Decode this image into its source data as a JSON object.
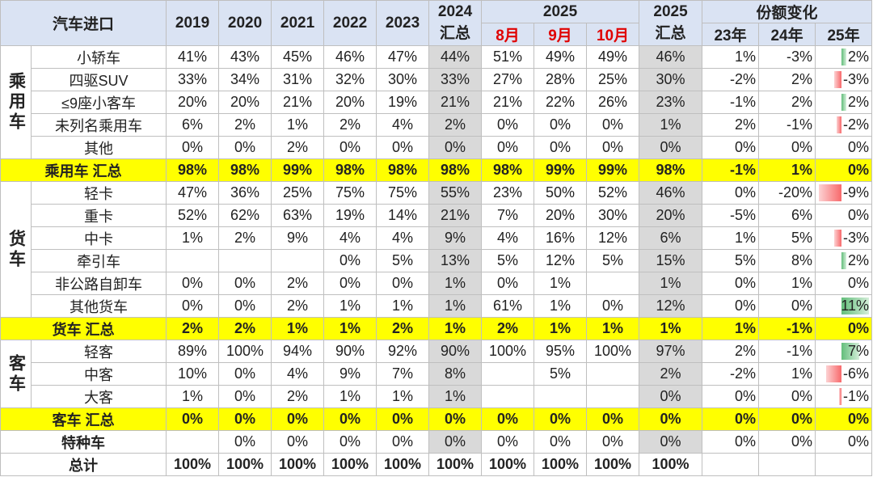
{
  "header": {
    "title": "汽车进口",
    "years": [
      "2019",
      "2020",
      "2021",
      "2022",
      "2023"
    ],
    "col2024": [
      "2024",
      "汇总"
    ],
    "group2025": "2025",
    "months": [
      "8月",
      "9月",
      "10月"
    ],
    "col2025": [
      "2025",
      "汇总"
    ],
    "change_title": "份额变化",
    "change_cols": [
      "23年",
      "24年",
      "25年"
    ]
  },
  "groups": [
    {
      "label": "乘用车",
      "rows": [
        {
          "name": "小轿车",
          "cells": [
            "41%",
            "43%",
            "45%",
            "46%",
            "47%",
            "44%",
            "51%",
            "49%",
            "49%",
            "46%",
            "1%",
            "-3%",
            "2%"
          ]
        },
        {
          "name": "四驱SUV",
          "cells": [
            "33%",
            "34%",
            "31%",
            "32%",
            "30%",
            "33%",
            "27%",
            "28%",
            "25%",
            "30%",
            "-2%",
            "2%",
            "-3%"
          ]
        },
        {
          "name": "≤9座小客车",
          "cells": [
            "20%",
            "20%",
            "21%",
            "20%",
            "19%",
            "21%",
            "21%",
            "22%",
            "26%",
            "23%",
            "-1%",
            "2%",
            "2%"
          ]
        },
        {
          "name": "未列名乘用车",
          "cells": [
            "6%",
            "2%",
            "1%",
            "2%",
            "4%",
            "2%",
            "0%",
            "0%",
            "0%",
            "1%",
            "2%",
            "-1%",
            "-2%"
          ]
        },
        {
          "name": "其他",
          "cells": [
            "0%",
            "0%",
            "2%",
            "0%",
            "0%",
            "0%",
            "0%",
            "0%",
            "0%",
            "0%",
            "0%",
            "0%",
            "0%"
          ]
        }
      ],
      "total": {
        "name": "乘用车 汇总",
        "cells": [
          "98%",
          "98%",
          "99%",
          "98%",
          "98%",
          "98%",
          "98%",
          "99%",
          "99%",
          "98%",
          "-1%",
          "1%",
          "0%"
        ]
      }
    },
    {
      "label": "货车",
      "rows": [
        {
          "name": "轻卡",
          "cells": [
            "47%",
            "36%",
            "25%",
            "75%",
            "75%",
            "55%",
            "23%",
            "50%",
            "52%",
            "46%",
            "0%",
            "-20%",
            "-9%"
          ]
        },
        {
          "name": "重卡",
          "cells": [
            "52%",
            "62%",
            "63%",
            "19%",
            "14%",
            "21%",
            "7%",
            "20%",
            "30%",
            "20%",
            "-5%",
            "6%",
            "0%"
          ]
        },
        {
          "name": "中卡",
          "cells": [
            "1%",
            "2%",
            "9%",
            "4%",
            "4%",
            "9%",
            "4%",
            "16%",
            "12%",
            "6%",
            "1%",
            "5%",
            "-3%"
          ]
        },
        {
          "name": "牵引车",
          "cells": [
            null,
            null,
            null,
            "0%",
            "5%",
            "13%",
            "5%",
            "12%",
            "5%",
            "15%",
            "5%",
            "8%",
            "2%"
          ]
        },
        {
          "name": "非公路自卸车",
          "cells": [
            "0%",
            "0%",
            "2%",
            "0%",
            "0%",
            "1%",
            "0%",
            "1%",
            null,
            "1%",
            "0%",
            "1%",
            "0%"
          ]
        },
        {
          "name": "其他货车",
          "cells": [
            "0%",
            "0%",
            "2%",
            "1%",
            "1%",
            "1%",
            "61%",
            "1%",
            "0%",
            "12%",
            "0%",
            "0%",
            "11%"
          ]
        }
      ],
      "total": {
        "name": "货车 汇总",
        "cells": [
          "2%",
          "2%",
          "1%",
          "1%",
          "2%",
          "1%",
          "2%",
          "1%",
          "1%",
          "1%",
          "1%",
          "-1%",
          "0%"
        ]
      }
    },
    {
      "label": "客车",
      "rows": [
        {
          "name": "轻客",
          "cells": [
            "89%",
            "100%",
            "94%",
            "90%",
            "92%",
            "90%",
            "100%",
            "95%",
            "100%",
            "97%",
            "2%",
            "-1%",
            "7%"
          ]
        },
        {
          "name": "中客",
          "cells": [
            "10%",
            "0%",
            "4%",
            "9%",
            "7%",
            "8%",
            null,
            "5%",
            null,
            "2%",
            "-2%",
            "1%",
            "-6%"
          ]
        },
        {
          "name": "大客",
          "cells": [
            "1%",
            "0%",
            "2%",
            "1%",
            "1%",
            "1%",
            null,
            null,
            null,
            "0%",
            "0%",
            "0%",
            "-1%"
          ]
        }
      ],
      "total": {
        "name": "客车 汇总",
        "cells": [
          "0%",
          "0%",
          "0%",
          "0%",
          "0%",
          "0%",
          "0%",
          "0%",
          "0%",
          "0%",
          "0%",
          "0%",
          "0%"
        ]
      }
    }
  ],
  "extra_rows": [
    {
      "name": "特种车",
      "cells": [
        null,
        "0%",
        "0%",
        "0%",
        "0%",
        "0%",
        "0%",
        "0%",
        "0%",
        "0%",
        "0%",
        "0%",
        "0%"
      ]
    },
    {
      "name": "总计",
      "cells": [
        "100%",
        "100%",
        "100%",
        "100%",
        "100%",
        "100%",
        "100%",
        "100%",
        "100%",
        "100%",
        null,
        null,
        null
      ]
    }
  ]
}
